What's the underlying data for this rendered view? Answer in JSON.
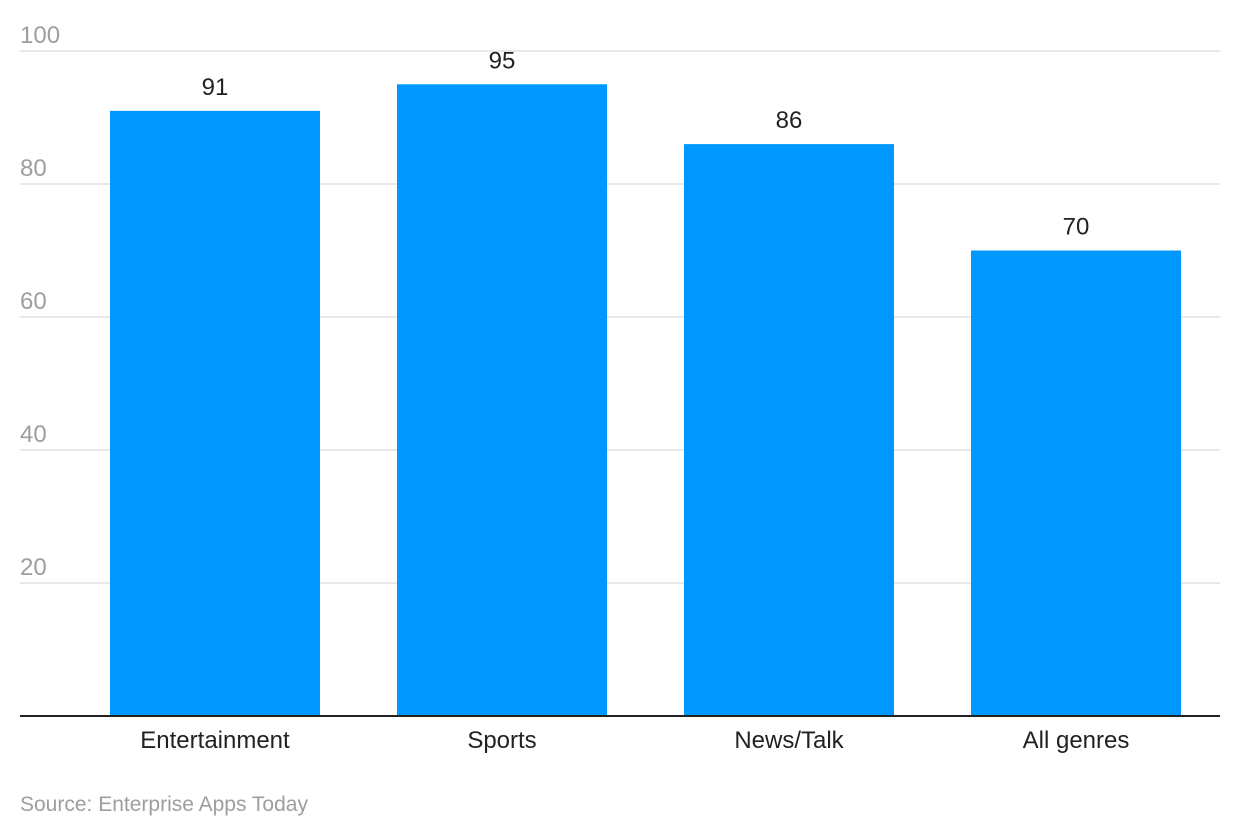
{
  "chart_data": {
    "type": "bar",
    "categories": [
      "Entertainment",
      "Sports",
      "News/Talk",
      "All genres"
    ],
    "values": [
      91,
      95,
      86,
      70
    ],
    "yticks": [
      20,
      40,
      60,
      80,
      100
    ],
    "ylim": [
      0,
      100
    ],
    "grid": true,
    "bar_color": "#0098ff",
    "title": "",
    "xlabel": "",
    "ylabel": ""
  },
  "source": "Source: Enterprise Apps Today"
}
